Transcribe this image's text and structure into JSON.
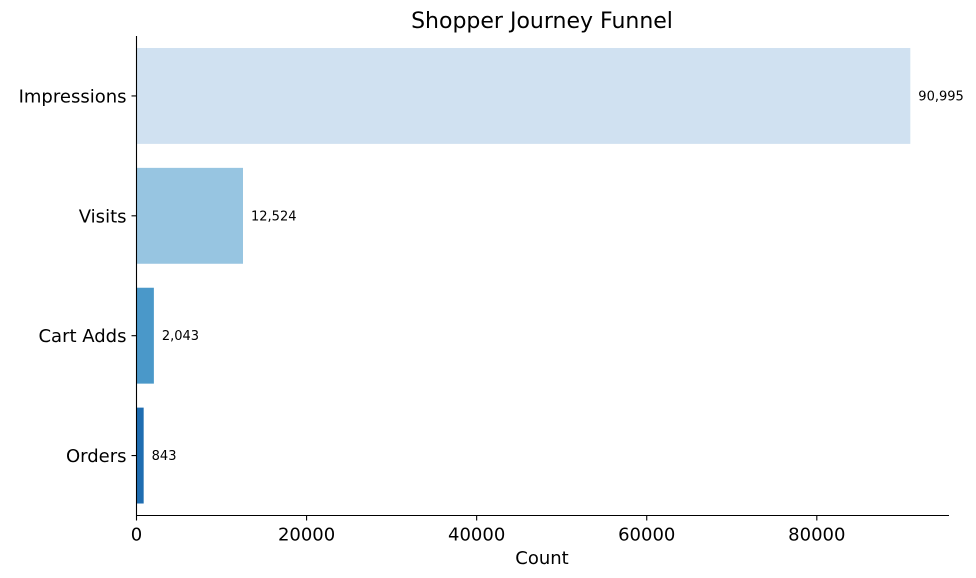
{
  "chart_data": {
    "type": "bar",
    "orientation": "horizontal",
    "title": "Shopper Journey Funnel",
    "xlabel": "Count",
    "ylabel": "",
    "categories": [
      "Impressions",
      "Visits",
      "Cart Adds",
      "Orders"
    ],
    "values": [
      90995,
      12524,
      2043,
      843
    ],
    "data_labels": [
      "90,995",
      "12,524",
      "2,043",
      "843"
    ],
    "colors": [
      "#d0e1f1",
      "#97c5e1",
      "#4a98c9",
      "#1f6db1"
    ],
    "xlim": [
      0,
      95545
    ],
    "xticks": [
      0,
      20000,
      40000,
      60000,
      80000
    ],
    "xtick_labels": [
      "0",
      "20000",
      "40000",
      "60000",
      "80000"
    ],
    "grid": false,
    "legend": "none"
  }
}
